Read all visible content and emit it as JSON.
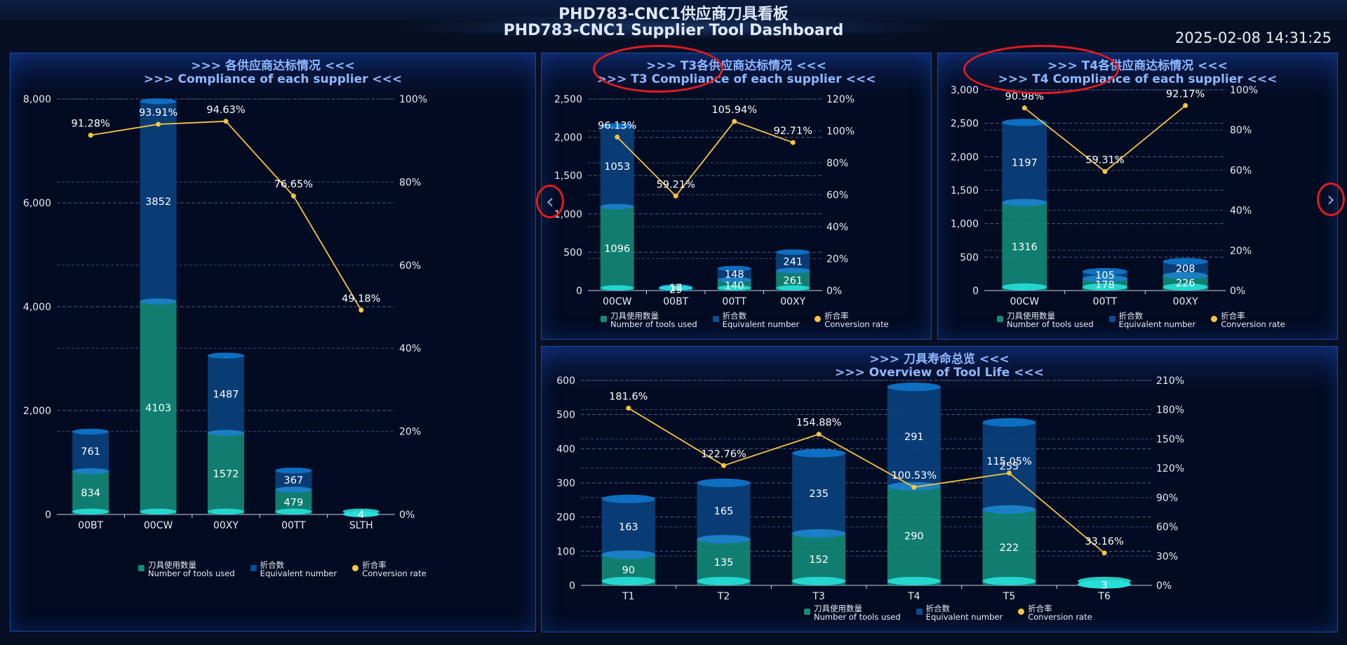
{
  "header": {
    "title_cn": "PHD783-CNC1供应商刀具看板",
    "title_en": "PHD783-CNC1 Supplier Tool Dashboard",
    "datetime": "2025-02-08 14:31:25"
  },
  "panels": {
    "supplier": {
      "title_cn": ">>> 各供应商达标情况 <<<",
      "title_en": ">>> Compliance of each supplier <<<"
    },
    "t3": {
      "title_cn": ">>> T3各供应商达标情况 <<<",
      "title_en": ">>> T3 Compliance of each supplier <<<"
    },
    "t4": {
      "title_cn": ">>> T4各供应商达标情况 <<<",
      "title_en": ">>> T4 Compliance of each supplier <<<"
    },
    "life": {
      "title_cn": ">>> 刀具寿命总览 <<<",
      "title_en": ">>> Overview of Tool Life <<<"
    }
  },
  "legend": {
    "tools_cn": "刀具使用数量",
    "tools_en": "Number of tools used",
    "equiv_cn": "折合数",
    "equiv_en": "Equivalent number",
    "rate_cn": "折合率",
    "rate_en": "Conversion rate"
  },
  "nav": {
    "prev_icon": "chevron-left-icon",
    "next_icon": "chevron-right-icon",
    "prev": "‹",
    "next": "›"
  },
  "colors": {
    "tools": "#138a7a",
    "tools_cap": "#27e0d8",
    "equiv": "#0a3f7a",
    "equiv_cap": "#0d6fc2",
    "rate": "#f4c542",
    "annotation": "#e21a22"
  },
  "chart_data": [
    {
      "id": "supplier",
      "type": "bar",
      "categories": [
        "00BT",
        "00CW",
        "00XY",
        "00TT",
        "SLTH"
      ],
      "series": [
        {
          "name": "Number of tools used",
          "values": [
            834,
            4103,
            1572,
            479,
            4
          ]
        },
        {
          "name": "Equivalent number",
          "values": [
            761,
            3852,
            1487,
            367,
            null
          ]
        },
        {
          "name": "Conversion rate",
          "type": "line",
          "axis": "right",
          "values": [
            91.28,
            93.91,
            94.63,
            76.65,
            49.18
          ],
          "labels": [
            "91.28%",
            "93.91%",
            "94.63%",
            "76.65%",
            "49.18%"
          ]
        }
      ],
      "ylim": [
        0,
        8000
      ],
      "yticks": [
        0,
        2000,
        4000,
        6000,
        8000
      ],
      "ytick_labels": [
        "0",
        "2,000",
        "4,000",
        "6,000",
        "8,000"
      ],
      "y2lim": [
        0,
        100
      ],
      "y2ticks": [
        0,
        20,
        40,
        60,
        80,
        100
      ],
      "y2tick_labels": [
        "0%",
        "20%",
        "40%",
        "60%",
        "80%",
        "100%"
      ],
      "grid": true,
      "legend": "bottom"
    },
    {
      "id": "t3",
      "type": "bar",
      "categories": [
        "00CW",
        "00BT",
        "00TT",
        "00XY"
      ],
      "series": [
        {
          "name": "Number of tools used",
          "values": [
            1096,
            29,
            140,
            261
          ]
        },
        {
          "name": "Equivalent number",
          "values": [
            1053,
            17,
            148,
            241
          ]
        },
        {
          "name": "Conversion rate",
          "type": "line",
          "axis": "right",
          "values": [
            96.13,
            59.21,
            105.94,
            92.71
          ],
          "labels": [
            "96.13%",
            "59.21%",
            "105.94%",
            "92.71%"
          ]
        }
      ],
      "ylim": [
        0,
        2500
      ],
      "yticks": [
        0,
        500,
        1000,
        1500,
        2000,
        2500
      ],
      "ytick_labels": [
        "0",
        "500",
        "1,000",
        "1,500",
        "2,000",
        "2,500"
      ],
      "y2lim": [
        0,
        120
      ],
      "y2ticks": [
        0,
        20,
        40,
        60,
        80,
        100,
        120
      ],
      "y2tick_labels": [
        "0%",
        "20%",
        "40%",
        "60%",
        "80%",
        "100%",
        "120%"
      ],
      "grid": true,
      "legend": "bottom"
    },
    {
      "id": "t4",
      "type": "bar",
      "categories": [
        "00CW",
        "00TT",
        "00XY"
      ],
      "series": [
        {
          "name": "Number of tools used",
          "values": [
            1316,
            178,
            226
          ]
        },
        {
          "name": "Equivalent number",
          "values": [
            1197,
            105,
            208
          ]
        },
        {
          "name": "Conversion rate",
          "type": "line",
          "axis": "right",
          "values": [
            90.98,
            59.31,
            92.17
          ],
          "labels": [
            "90.98%",
            "59.31%",
            "92.17%"
          ]
        }
      ],
      "ylim": [
        0,
        3000
      ],
      "yticks": [
        0,
        500,
        1000,
        1500,
        2000,
        2500,
        3000
      ],
      "ytick_labels": [
        "0",
        "500",
        "1,000",
        "1,500",
        "2,000",
        "2,500",
        "3,000"
      ],
      "y2lim": [
        0,
        100
      ],
      "y2ticks": [
        0,
        20,
        40,
        60,
        80,
        100
      ],
      "y2tick_labels": [
        "0%",
        "20%",
        "40%",
        "60%",
        "80%",
        "100%"
      ],
      "grid": true,
      "legend": "bottom"
    },
    {
      "id": "life",
      "type": "bar",
      "categories": [
        "T1",
        "T2",
        "T3",
        "T4",
        "T5",
        "T6"
      ],
      "series": [
        {
          "name": "Number of tools used",
          "values": [
            90,
            135,
            152,
            290,
            222,
            3
          ]
        },
        {
          "name": "Equivalent number",
          "values": [
            163,
            165,
            235,
            291,
            255,
            null
          ]
        },
        {
          "name": "Conversion rate",
          "type": "line",
          "axis": "right",
          "values": [
            181.6,
            122.76,
            154.88,
            100.53,
            115.05,
            33.16
          ],
          "labels": [
            "181.6%",
            "122.76%",
            "154.88%",
            "100.53%",
            "115.05%",
            "33.16%"
          ]
        }
      ],
      "ylim": [
        0,
        600
      ],
      "yticks": [
        0,
        100,
        200,
        300,
        400,
        500,
        600
      ],
      "ytick_labels": [
        "0",
        "100",
        "200",
        "300",
        "400",
        "500",
        "600"
      ],
      "y2lim": [
        0,
        210
      ],
      "y2ticks": [
        0,
        30,
        60,
        90,
        120,
        150,
        180,
        210
      ],
      "y2tick_labels": [
        "0%",
        "30%",
        "60%",
        "90%",
        "120%",
        "150%",
        "180%",
        "210%"
      ],
      "grid": true,
      "legend": "bottom"
    }
  ]
}
